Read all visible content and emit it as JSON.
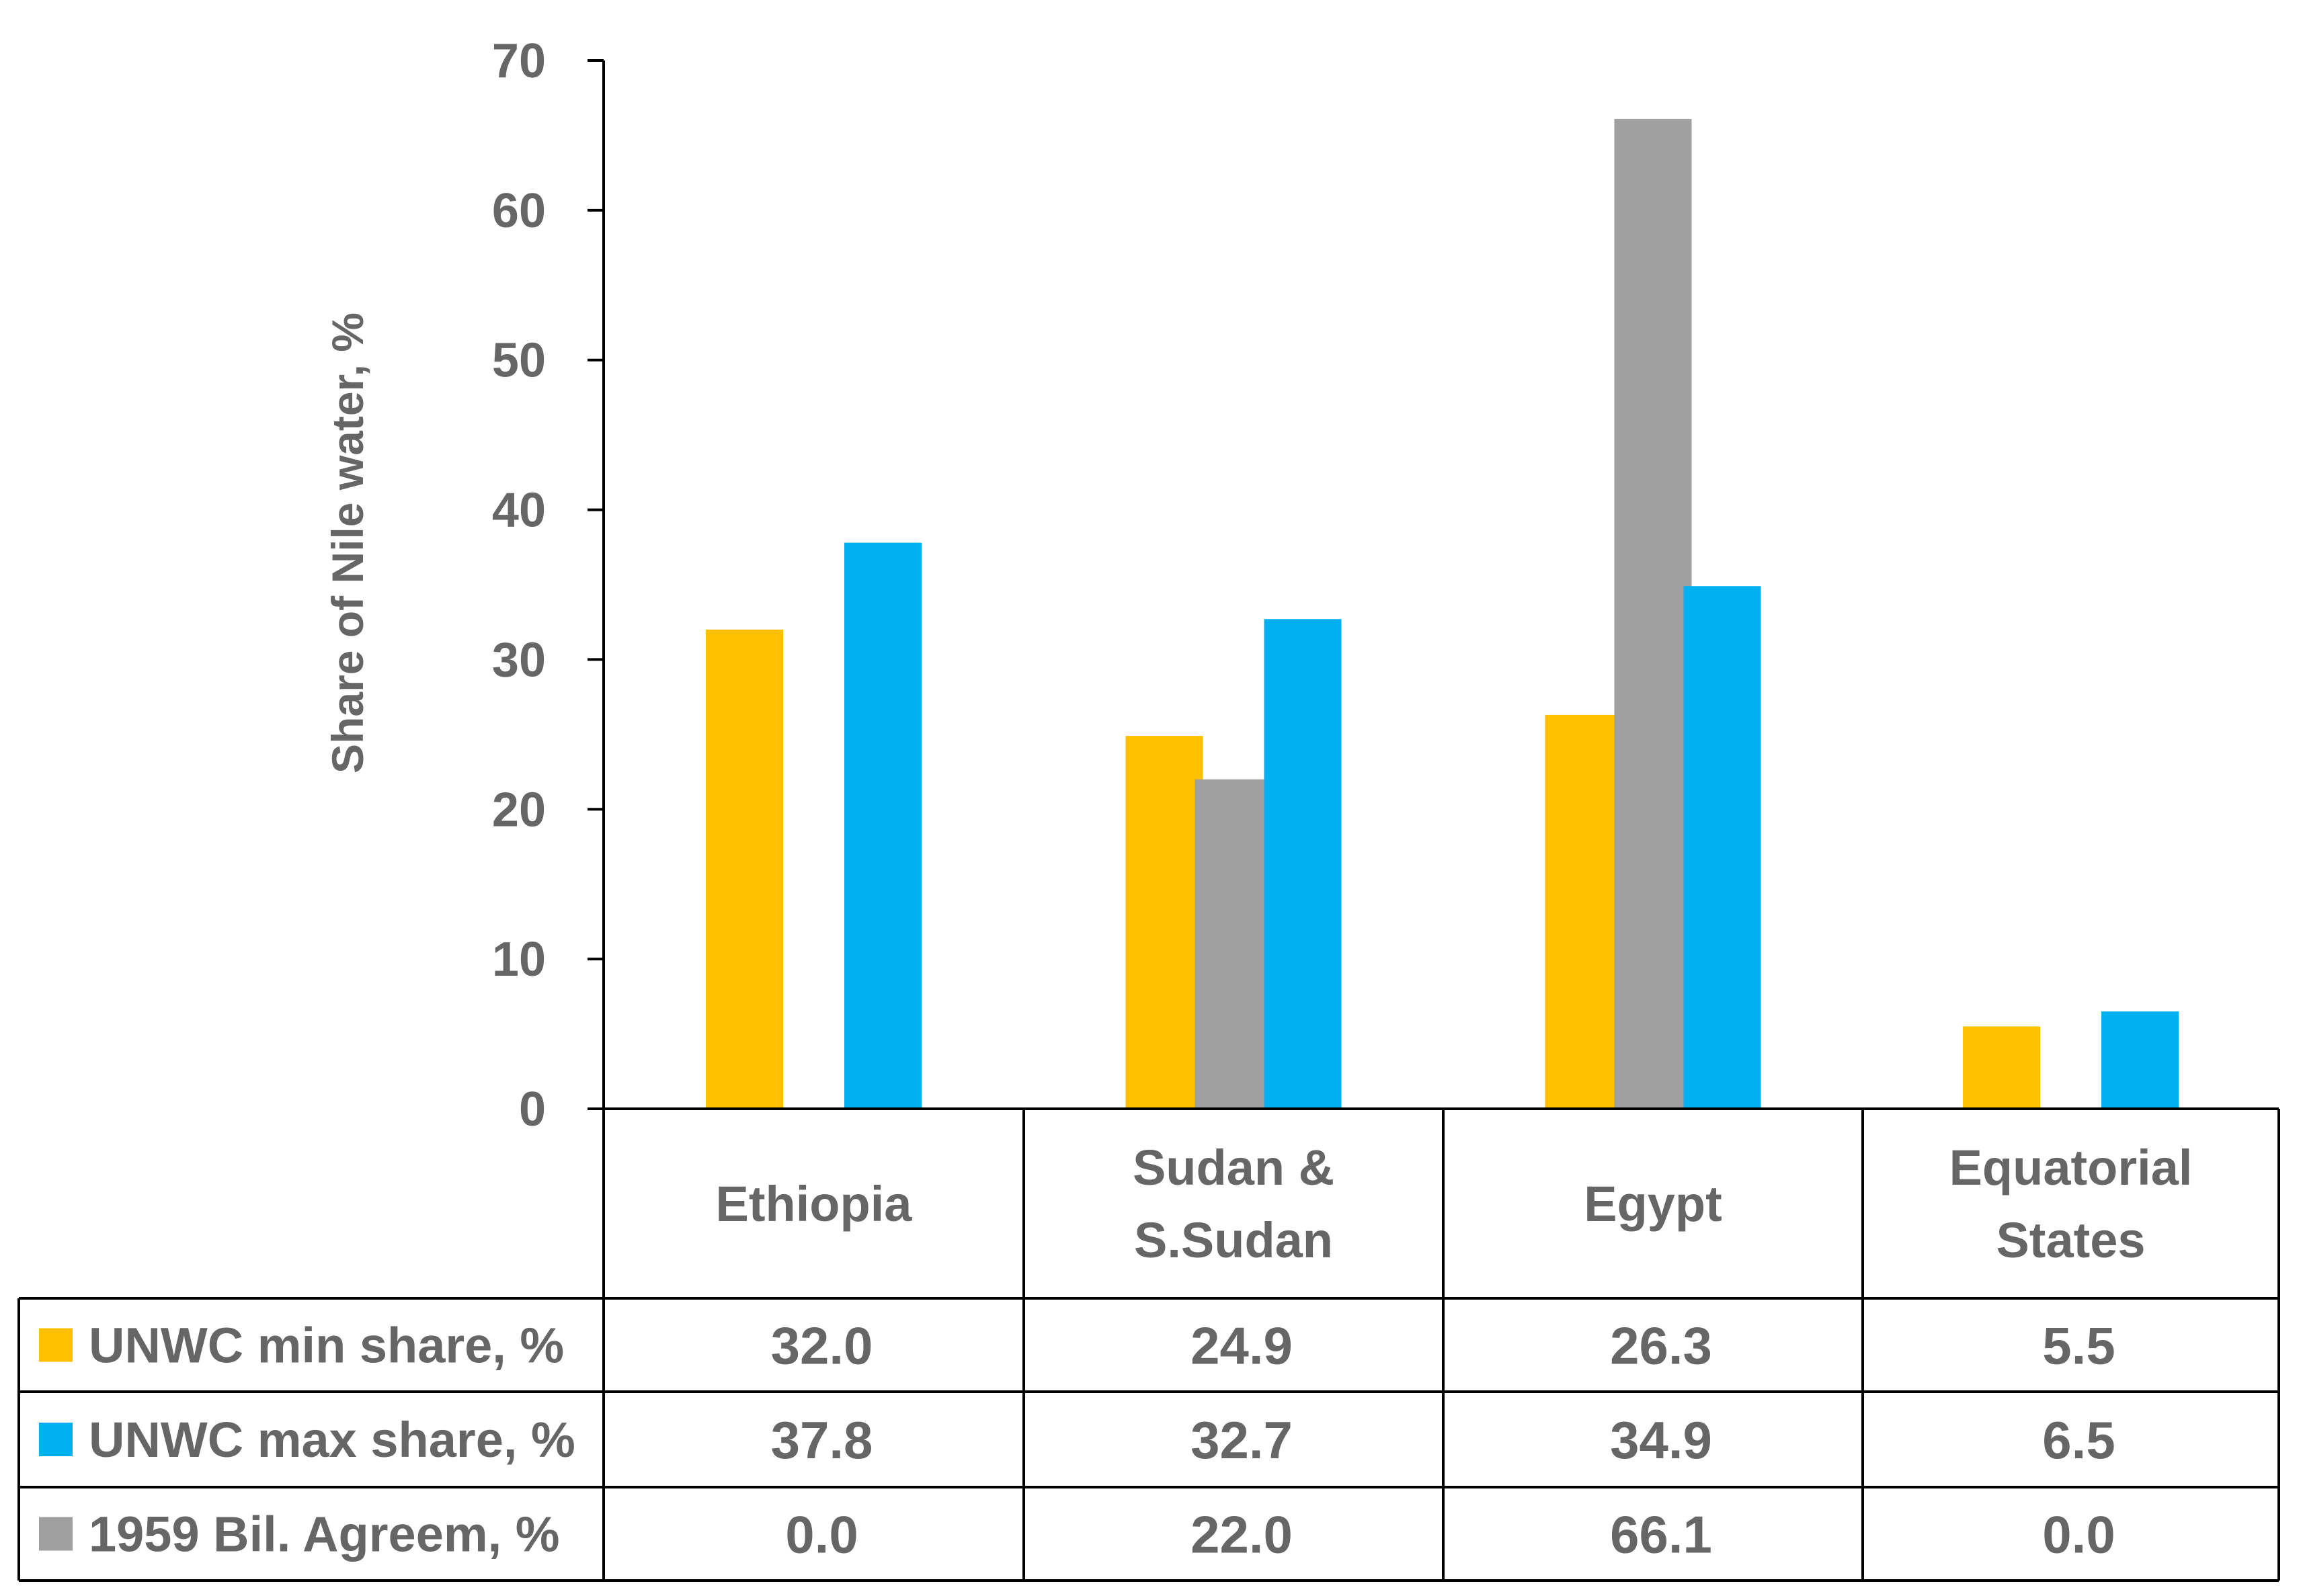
{
  "chart_data": {
    "type": "bar",
    "title": "",
    "xlabel": "",
    "ylabel": "Share of Nile water, %",
    "ylim": [
      0,
      70
    ],
    "yticks": [
      0,
      10,
      20,
      30,
      40,
      50,
      60,
      70
    ],
    "grid": false,
    "legend": "data-table-left",
    "categories": [
      [
        "Ethiopia"
      ],
      [
        "Sudan &",
        "S.Sudan"
      ],
      [
        "Egypt"
      ],
      [
        "Equatorial",
        "States"
      ]
    ],
    "series": [
      {
        "name": "UNWC min share, %",
        "color": "#FFC000",
        "values": [
          32.0,
          24.9,
          26.3,
          5.5
        ],
        "labels": [
          "32.0",
          "24.9",
          "26.3",
          "5.5"
        ]
      },
      {
        "name": "UNWC max share, %",
        "color": "#00B0F0",
        "values": [
          37.8,
          32.7,
          34.9,
          6.5
        ],
        "labels": [
          "37.8",
          "32.7",
          "34.9",
          "6.5"
        ]
      },
      {
        "name": "1959 Bil. Agreem, %",
        "color": "#A0A0A0",
        "values": [
          0.0,
          22.0,
          66.1,
          0.0
        ],
        "labels": [
          "0.0",
          "22.0",
          "66.1",
          "0.0"
        ]
      }
    ]
  }
}
